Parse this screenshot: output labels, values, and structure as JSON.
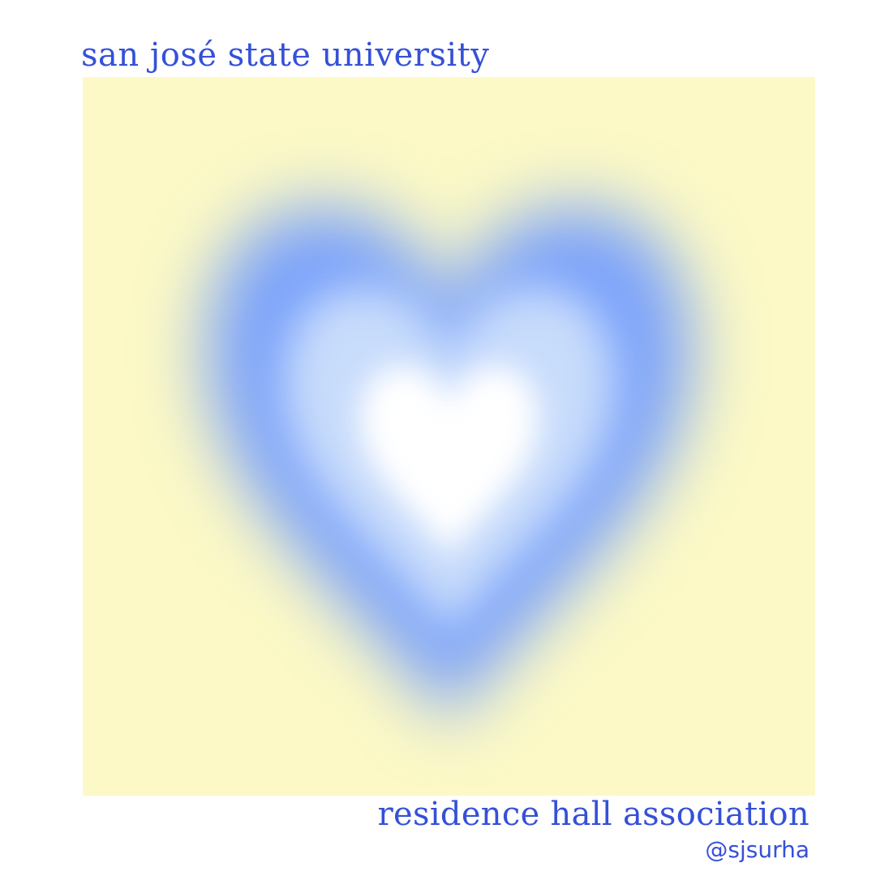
{
  "header": {
    "university_name": "san josé state university"
  },
  "artwork": {
    "subject": "aura-heart",
    "colors": {
      "background": "#fcf9c6",
      "outer_glow": "#7aa2fb",
      "middle_ring": "#c8dcfb",
      "center": "#ffffff"
    }
  },
  "footer": {
    "organization_name": "residence hall association",
    "social_handle": "@sjsurha"
  },
  "text_color": "#3550d8"
}
